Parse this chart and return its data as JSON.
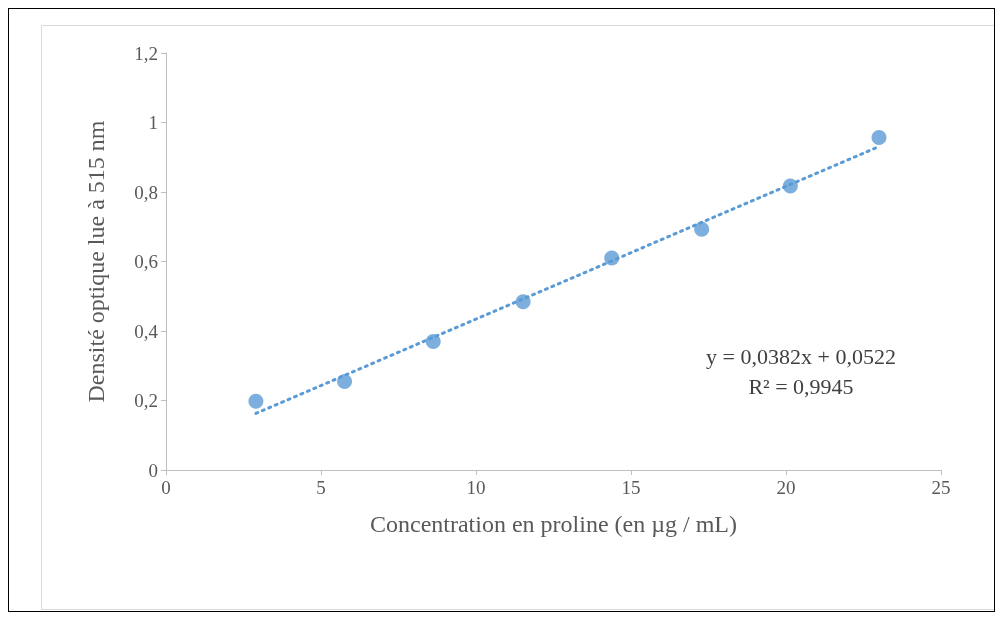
{
  "chart_data": {
    "type": "scatter",
    "xlabel": "Concentration en proline (en µg / mL)",
    "ylabel": "Densité optique lue à 515 nm",
    "xlim": [
      0,
      25
    ],
    "xticks": [
      0,
      5,
      10,
      15,
      20,
      25
    ],
    "ylim": [
      0,
      1.2
    ],
    "yticks": [
      0,
      {
        "value": 0.2,
        "label": "0,2"
      },
      {
        "value": 0.4,
        "label": "0,4"
      },
      {
        "value": 0.6,
        "label": "0,6"
      },
      {
        "value": 0.8,
        "label": "0,8"
      },
      1,
      {
        "value": 1.2,
        "label": "1,2"
      }
    ],
    "grid": false,
    "marker": "circle",
    "series": [
      {
        "color": "#5b9bd5",
        "x": [
          2.9,
          5.76,
          8.62,
          11.52,
          14.38,
          17.28,
          20.14,
          23.0
        ],
        "values": [
          0.198,
          0.255,
          0.37,
          0.484,
          0.61,
          0.693,
          0.817,
          0.957
        ]
      },
      {
        "type": "line",
        "color": "#5b9bd5",
        "line_style": "dotted",
        "marker": "none",
        "x": [
          2.9,
          23.0
        ],
        "values": [
          0.163,
          0.931
        ]
      }
    ],
    "annotations": [
      "y = 0,0382x + 0,0522\nR² = 0,9945"
    ]
  }
}
